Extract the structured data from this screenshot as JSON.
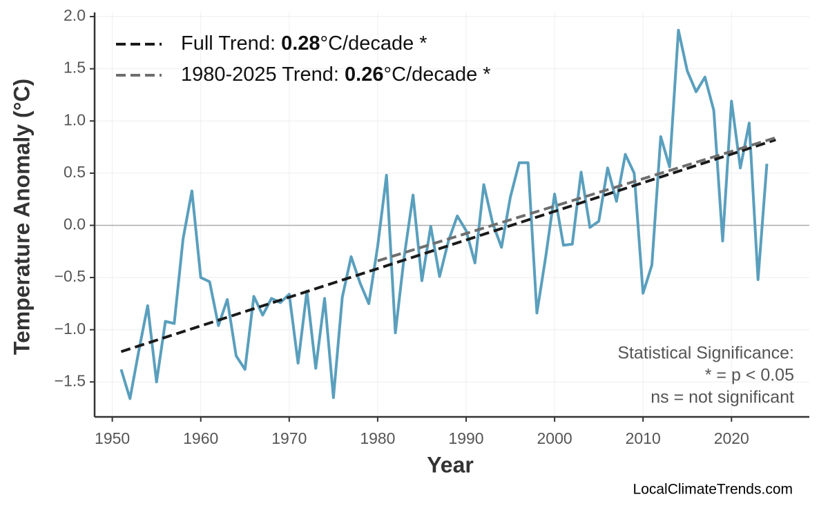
{
  "chart_data": {
    "type": "line",
    "x_label": "Year",
    "y_label": "Temperature Anomaly (°C)",
    "x": [
      1951,
      1952,
      1953,
      1954,
      1955,
      1956,
      1957,
      1958,
      1959,
      1960,
      1961,
      1962,
      1963,
      1964,
      1965,
      1966,
      1967,
      1968,
      1969,
      1970,
      1971,
      1972,
      1973,
      1974,
      1975,
      1976,
      1977,
      1978,
      1979,
      1980,
      1981,
      1982,
      1983,
      1984,
      1985,
      1986,
      1987,
      1988,
      1989,
      1990,
      1991,
      1992,
      1993,
      1994,
      1995,
      1996,
      1997,
      1998,
      1999,
      2000,
      2001,
      2002,
      2003,
      2004,
      2005,
      2006,
      2007,
      2008,
      2009,
      2010,
      2011,
      2012,
      2013,
      2014,
      2015,
      2016,
      2017,
      2018,
      2019,
      2020,
      2021,
      2022,
      2023,
      2024
    ],
    "series": [
      {
        "color": "#5a9fbd",
        "values": [
          -1.38,
          -1.66,
          -1.2,
          -0.77,
          -1.5,
          -0.92,
          -0.94,
          -0.13,
          0.33,
          -0.5,
          -0.54,
          -0.96,
          -0.71,
          -1.25,
          -1.38,
          -0.68,
          -0.86,
          -0.7,
          -0.74,
          -0.66,
          -1.32,
          -0.63,
          -1.37,
          -0.7,
          -1.65,
          -0.69,
          -0.3,
          -0.55,
          -0.75,
          -0.2,
          0.48,
          -1.03,
          -0.3,
          0.29,
          -0.53,
          -0.01,
          -0.49,
          -0.15,
          0.09,
          -0.05,
          -0.36,
          0.39,
          0.02,
          -0.21,
          0.27,
          0.6,
          0.6,
          -0.84,
          -0.3,
          0.3,
          -0.19,
          -0.18,
          0.51,
          -0.02,
          0.04,
          0.55,
          0.23,
          0.68,
          0.5,
          -0.65,
          -0.38,
          0.85,
          0.56,
          1.87,
          1.48,
          1.28,
          1.42,
          1.1,
          -0.15,
          1.19,
          0.55,
          0.98,
          -0.52,
          0.59
        ]
      }
    ],
    "trend_lines": [
      {
        "name": "Full Trend: ",
        "rate": 0.28,
        "unit": "°C/decade *",
        "color": "#1a1a1a",
        "x": [
          1951,
          2025
        ],
        "values": [
          -1.21,
          0.82
        ]
      },
      {
        "name": "1980-2025 Trend: ",
        "rate": 0.26,
        "unit": "°C/decade *",
        "color": "#6e6e6e",
        "x": [
          1980,
          2025
        ],
        "values": [
          -0.34,
          0.84
        ]
      }
    ],
    "xlim": [
      1948.0,
      2028.8
    ],
    "ylim": [
      -1.835,
      2.04
    ],
    "xticks": [
      1950,
      1960,
      1970,
      1980,
      1990,
      2000,
      2010,
      2020
    ],
    "yticks": [
      {
        "value": -1.5,
        "label": "−1.5"
      },
      {
        "value": -1.0,
        "label": "−1.0"
      },
      {
        "value": -0.5,
        "label": "−0.5"
      },
      {
        "value": 0,
        "label": "0.0"
      },
      0.5,
      {
        "value": 1.0,
        "label": "1.0"
      },
      1.5,
      {
        "value": 2.0,
        "label": "2.0"
      }
    ],
    "grid": true,
    "legend_position": "upper left",
    "annotation": [
      "Statistical Significance:",
      "* = p < 0.05",
      "ns = not significant"
    ],
    "source": "LocalClimateTrends.com"
  }
}
